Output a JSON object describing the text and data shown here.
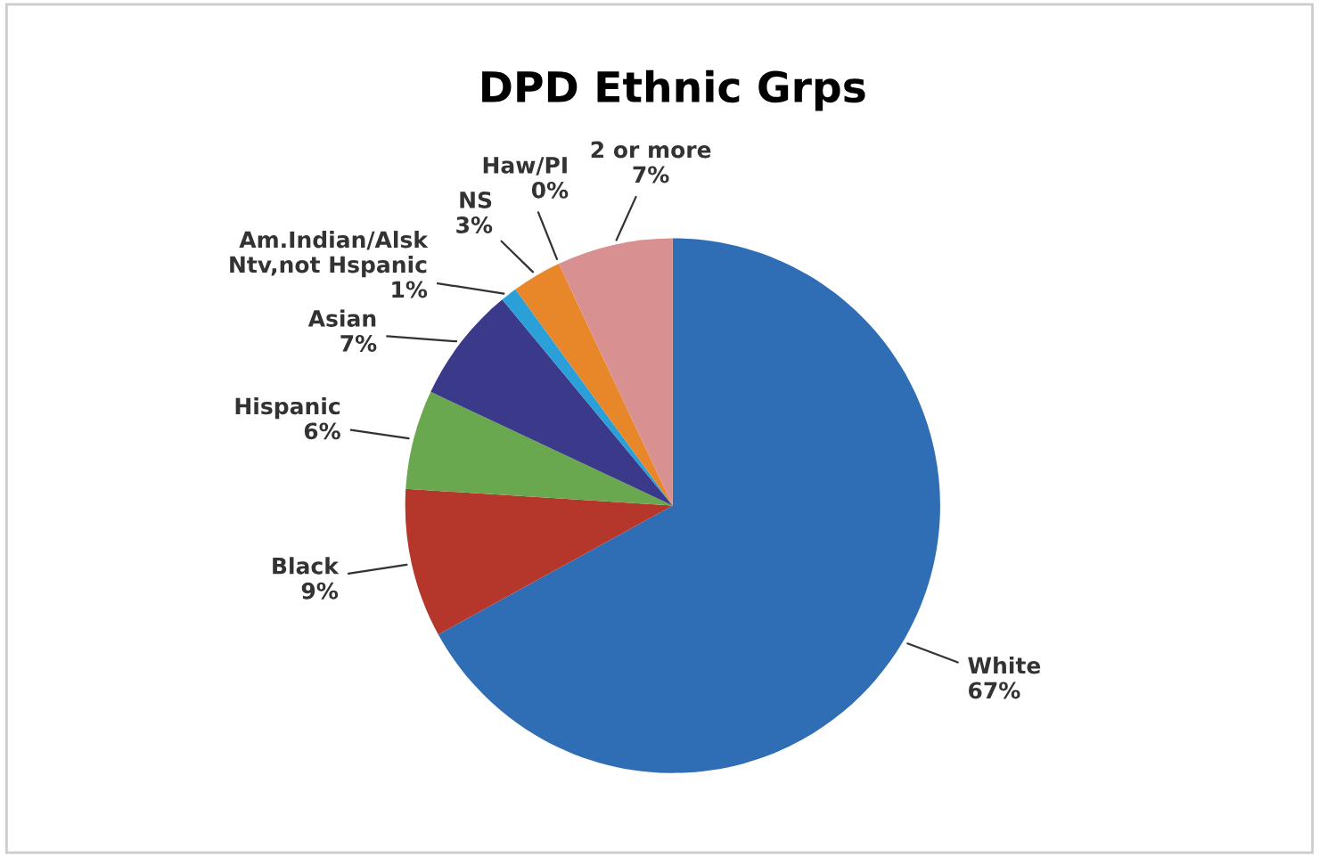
{
  "chart_data": {
    "type": "pie",
    "title": "DPD Ethnic Grps",
    "categories": [
      "White",
      "Black",
      "Hispanic",
      "Asian",
      "Am.Indian/Alsk\nNtv,not Hspanic",
      "NS",
      "Haw/PI",
      "2 or more"
    ],
    "values": [
      67,
      9,
      6,
      7,
      1,
      3,
      0,
      7
    ],
    "colors": [
      "#2f6db5",
      "#b5362b",
      "#6aa84f",
      "#3b3a8a",
      "#2b9fd8",
      "#e8862a",
      "#8ea3d6",
      "#d99090"
    ],
    "value_labels": [
      "67%",
      "9%",
      "6%",
      "7%",
      "1%",
      "3%",
      "0%",
      "7%"
    ]
  }
}
